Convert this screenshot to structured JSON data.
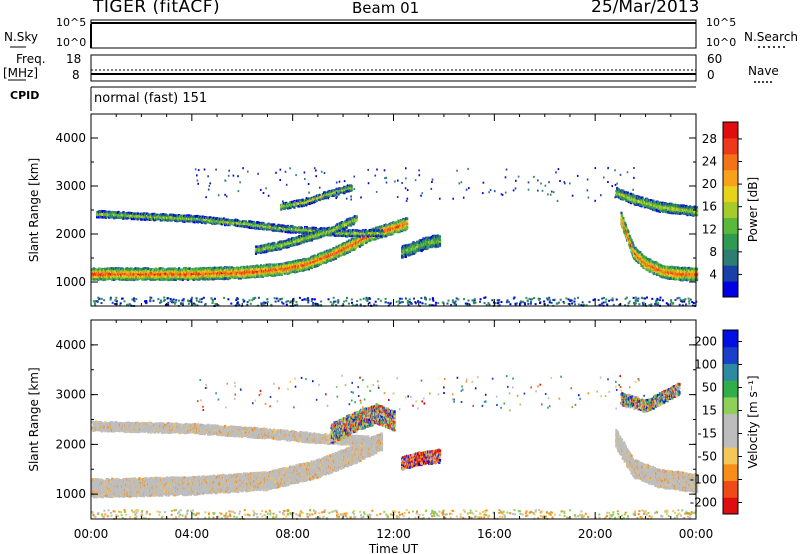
{
  "header": {
    "radar": "TIGER (fitACF)",
    "beam": "Beam 01",
    "date": "25/Mar/2013"
  },
  "panels": {
    "nsky": {
      "label": "N.Sky",
      "ticks": [
        "10^5",
        "10^0"
      ]
    },
    "nsearch": {
      "label": "N.Search",
      "ticks": [
        "10^5",
        "10^0"
      ]
    },
    "freq": {
      "label1": "Freq.",
      "label2": "[MHz]",
      "ticks": [
        "18",
        "8"
      ]
    },
    "nave": {
      "label": "Nave",
      "ticks": [
        "60",
        "0"
      ]
    },
    "cpid": {
      "label": "CPID",
      "mode": "normal (fast) 151"
    }
  },
  "chart_data": [
    {
      "type": "heatmap",
      "title": "",
      "xlabel": "Time UT",
      "ylabel": "Slant Range [km]",
      "x_ticks": [
        "00:00",
        "04:00",
        "08:00",
        "12:00",
        "16:00",
        "20:00",
        "00:00"
      ],
      "y_ticks": [
        "1000",
        "2000",
        "3000",
        "4000"
      ],
      "ylim": [
        500,
        4500
      ],
      "colorbar": {
        "label": "Power [dB]",
        "ticks": [
          "4",
          "8",
          "12",
          "16",
          "20",
          "24",
          "28"
        ],
        "range": [
          0,
          31
        ],
        "colors": [
          "#0000e0",
          "#1a40a8",
          "#2e7d72",
          "#2f9a52",
          "#5ab83a",
          "#a7cc2a",
          "#e6d31a",
          "#f7a21a",
          "#f47218",
          "#ee3a1a",
          "#e00d10"
        ]
      },
      "features": [
        {
          "name": "band_main",
          "t": [
            0,
            1.5,
            4,
            6,
            7.5,
            8.5,
            9.5,
            10.3,
            11,
            12.5
          ],
          "r": [
            1150,
            1150,
            1150,
            1180,
            1250,
            1350,
            1550,
            1750,
            1950,
            2200
          ],
          "thickness_km": 200,
          "level": 0.88
        },
        {
          "name": "band_upper",
          "t": [
            0.2,
            2,
            4,
            6,
            7.5,
            8.8,
            10,
            11.5
          ],
          "r": [
            2400,
            2350,
            2300,
            2200,
            2100,
            2050,
            2000,
            2000
          ],
          "thickness_km": 90,
          "level": 0.55
        },
        {
          "name": "band_mid",
          "t": [
            6.5,
            7.5,
            8.5,
            9.5,
            10.5
          ],
          "r": [
            1650,
            1750,
            1900,
            2050,
            2300
          ],
          "thickness_km": 120,
          "level": 0.55
        },
        {
          "name": "band_top",
          "t": [
            7.5,
            8.5,
            9.3,
            10.3
          ],
          "r": [
            2550,
            2650,
            2800,
            2950
          ],
          "thickness_km": 90,
          "level": 0.6
        },
        {
          "name": "patch_12_14",
          "t": [
            12.3,
            12.8,
            13.3,
            13.8
          ],
          "r": [
            1600,
            1700,
            1800,
            1850
          ],
          "thickness_km": 200,
          "level": 0.45
        },
        {
          "name": "band_evening",
          "t": [
            21,
            21.5,
            22,
            22.7,
            23.3,
            24
          ],
          "r": [
            2300,
            1600,
            1350,
            1200,
            1150,
            1150
          ],
          "thickness_km": 220,
          "level": 0.85
        },
        {
          "name": "band_evening_upper",
          "t": [
            20.8,
            21.5,
            22.5,
            24
          ],
          "r": [
            2850,
            2700,
            2550,
            2450
          ],
          "thickness_km": 150,
          "level": 0.55
        }
      ]
    },
    {
      "type": "heatmap",
      "title": "",
      "xlabel": "Time UT",
      "ylabel": "Slant Range [km]",
      "x_ticks": [
        "00:00",
        "04:00",
        "08:00",
        "12:00",
        "16:00",
        "20:00",
        "00:00"
      ],
      "y_ticks": [
        "1000",
        "2000",
        "3000",
        "4000"
      ],
      "ylim": [
        500,
        4500
      ],
      "colorbar": {
        "label": "Velocity [m s⁻¹]",
        "ticks": [
          "200",
          "100",
          "50",
          "15",
          "-15",
          "-50",
          "-100",
          "-200"
        ],
        "range": [
          -250,
          250
        ],
        "colors": [
          "#e00d10",
          "#f04a18",
          "#f78e1a",
          "#f5c65a",
          "#bdbdbd",
          "#bdbdbd",
          "#8fd05a",
          "#2fae4a",
          "#2e8aa0",
          "#1a40c8",
          "#0010e0"
        ]
      },
      "features": [
        {
          "name": "ground_scatter_main",
          "t": [
            0,
            4,
            7,
            9,
            10.5,
            11.5
          ],
          "r": [
            1100,
            1150,
            1250,
            1500,
            1800,
            2050
          ],
          "thickness_km": 320,
          "color": "grey"
        },
        {
          "name": "ground_scatter_upper",
          "t": [
            0,
            4,
            7,
            9,
            11
          ],
          "r": [
            2350,
            2300,
            2200,
            2100,
            2050
          ],
          "thickness_km": 150,
          "color": "grey"
        },
        {
          "name": "ionospheric_10_12",
          "t": [
            9.5,
            10.5,
            11.3,
            12
          ],
          "r": [
            2200,
            2450,
            2600,
            2450
          ],
          "thickness_km": 350,
          "color": "mixed"
        },
        {
          "name": "ionospheric_12_14",
          "t": [
            12.3,
            13,
            13.8
          ],
          "r": [
            1600,
            1700,
            1750
          ],
          "thickness_km": 220,
          "color": "warm"
        },
        {
          "name": "ground_scatter_evening",
          "t": [
            20.8,
            21.5,
            22.5,
            24
          ],
          "r": [
            2100,
            1500,
            1300,
            1200
          ],
          "thickness_km": 320,
          "color": "grey"
        },
        {
          "name": "ionospheric_evening",
          "t": [
            21,
            22,
            23.3
          ],
          "r": [
            2900,
            2750,
            3100
          ],
          "thickness_km": 200,
          "color": "mixed"
        }
      ]
    }
  ]
}
